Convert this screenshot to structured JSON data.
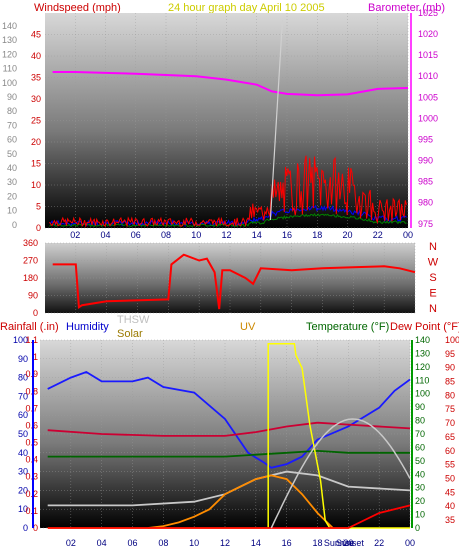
{
  "header": {
    "left_title": "Windspeed (mph)",
    "center_title": "24 hour graph day   April 10 2005",
    "right_title": "Barometer (mb)"
  },
  "colors": {
    "windspeed": "#ff0000",
    "gust": "#0000ff",
    "avg": "#008000",
    "barometer": "#ff00ff",
    "direction": "#ff0000",
    "rainfall": "#0000ff",
    "humidity": "#1a1aff",
    "thsw": "#c8c8c8",
    "solar": "#ffff00",
    "uv": "#ff8c00",
    "temperature": "#006400",
    "dewpoint": "#cc0033"
  },
  "chart_data": [
    {
      "type": "line",
      "title": "24 hour graph day   April 10 2005",
      "xlabel": "",
      "ylabel": "Windspeed (mph)",
      "y2label": "Barometer (mb)",
      "x_ticks": [
        "02",
        "04",
        "06",
        "08",
        "10",
        "12",
        "14",
        "16",
        "18",
        "20",
        "22",
        "00"
      ],
      "ylim": [
        0,
        50
      ],
      "y_ticks": [
        0,
        5,
        10,
        15,
        20,
        25,
        30,
        35,
        40,
        45
      ],
      "y2lim": [
        974,
        1025
      ],
      "y2_ticks": [
        975,
        980,
        985,
        990,
        995,
        1000,
        1005,
        1010,
        1015,
        1020,
        1025
      ],
      "left_scale_labels": [
        140,
        130,
        120,
        110,
        100,
        90,
        80,
        70,
        60,
        50,
        40,
        30,
        20,
        10,
        0
      ],
      "series": [
        {
          "name": "Barometer (mb)",
          "axis": "right",
          "x": [
            0.5,
            2,
            4,
            6,
            8,
            10,
            12,
            14,
            15,
            16,
            18,
            20,
            22,
            24
          ],
          "values": [
            1011,
            1011,
            1010.8,
            1010.6,
            1010.3,
            1010,
            1009.2,
            1008,
            1006.4,
            1005.8,
            1005.5,
            1005.7,
            1007,
            1007.2
          ]
        }
      ]
    },
    {
      "type": "line",
      "title": "",
      "x_ticks": [
        "02",
        "04",
        "06",
        "08",
        "10",
        "12",
        "14",
        "16",
        "18",
        "20",
        "22",
        "00"
      ],
      "ylim": [
        0,
        360
      ],
      "y_ticks": [
        0,
        90,
        180,
        270,
        360
      ],
      "right_labels": [
        "N",
        "W",
        "S",
        "E",
        "N"
      ],
      "series": [
        {
          "name": "Wind direction",
          "x": [
            0.5,
            2,
            2.2,
            2.4,
            4,
            8,
            8.2,
            9,
            10,
            10.5,
            11,
            11.3,
            11.5,
            12,
            13,
            13.5,
            14,
            16,
            18,
            20,
            22,
            23,
            24
          ],
          "values": [
            250,
            250,
            30,
            40,
            60,
            70,
            250,
            300,
            270,
            280,
            210,
            20,
            220,
            220,
            180,
            150,
            230,
            220,
            230,
            235,
            240,
            230,
            210
          ]
        }
      ]
    },
    {
      "type": "line",
      "title": "",
      "ylim": [
        0,
        100
      ],
      "y_ticks": [
        0,
        10,
        20,
        30,
        40,
        50,
        60,
        70,
        80,
        90,
        100
      ],
      "left_rain_ticks": [
        0,
        0.1,
        0.2,
        0.3,
        0.4,
        0.5,
        0.6,
        0.7,
        0.8,
        0.9,
        1,
        1.1
      ],
      "right_temp_ticks": [
        35,
        40,
        45,
        50,
        55,
        60,
        65,
        70,
        75,
        80,
        85,
        90,
        95,
        100
      ],
      "right_thsw_ticks": [
        0,
        10,
        20,
        30,
        40,
        50,
        60,
        70,
        80,
        90,
        100,
        110,
        120,
        130,
        140
      ],
      "x_ticks": [
        "02",
        "04",
        "06",
        "08",
        "10",
        "12",
        "14",
        "16",
        "18",
        "20",
        "22",
        "00"
      ],
      "annotations": [
        "Sunrise",
        "Sunset"
      ],
      "legend": [
        "Rainfall (.in)",
        "Humidity",
        "THSW",
        "Solar",
        "UV",
        "Temperature (°F)",
        "Dew Point (°F)"
      ],
      "series": [
        {
          "name": "Humidity",
          "x": [
            0.5,
            2,
            3,
            4,
            6,
            7,
            8,
            10,
            12,
            13.5,
            14.5,
            15,
            16,
            17,
            18,
            20,
            22,
            23,
            24
          ],
          "values": [
            74,
            80,
            83,
            78,
            78,
            80,
            75,
            72,
            58,
            40,
            35,
            32,
            34,
            38,
            47,
            54,
            64,
            73,
            79
          ]
        },
        {
          "name": "Dew Point (°F)",
          "x": [
            0.5,
            4,
            8,
            12,
            14,
            16,
            18,
            20,
            24
          ],
          "values": [
            52,
            50,
            49,
            49,
            51,
            54,
            56,
            55,
            53
          ]
        },
        {
          "name": "Temperature (°F)",
          "x": [
            0.5,
            4,
            8,
            12,
            14,
            16,
            18,
            20,
            24
          ],
          "values": [
            38,
            38,
            38,
            38,
            39,
            40,
            41,
            40,
            40
          ]
        },
        {
          "name": "THSW",
          "x": [
            0.5,
            6,
            10,
            12,
            14,
            16,
            18,
            20,
            24
          ],
          "values": [
            12,
            12,
            14,
            18,
            26,
            30,
            28,
            22,
            20
          ]
        },
        {
          "name": "UV",
          "x": [
            7,
            8,
            9,
            10,
            11,
            12,
            13,
            14,
            15,
            16,
            17,
            18,
            19
          ],
          "values": [
            0,
            1,
            3,
            6,
            10,
            18,
            22,
            26,
            28,
            26,
            18,
            8,
            0
          ]
        },
        {
          "name": "Solar",
          "x": [
            0.5,
            14.8,
            14.8,
            16.5,
            16.6,
            17.0,
            17.5,
            18.2,
            18.5,
            18.8,
            24
          ],
          "values": [
            0,
            0,
            98,
            98,
            92,
            85,
            55,
            25,
            4,
            0,
            0
          ]
        },
        {
          "name": "Rainfall (.in)",
          "x": [
            0.5,
            20,
            22,
            24
          ],
          "values": [
            0,
            0,
            8,
            12
          ]
        }
      ]
    }
  ]
}
